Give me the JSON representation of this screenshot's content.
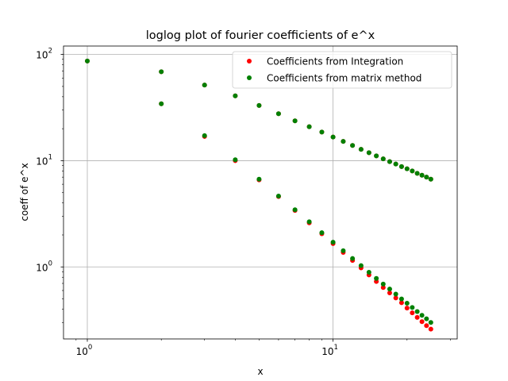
{
  "chart_data": {
    "type": "scatter",
    "title": "loglog plot of fourier coefficients of e^x",
    "xlabel": "x",
    "ylabel": "coeff of e^x",
    "xscale": "log",
    "yscale": "log",
    "xlim": [
      0.8,
      32
    ],
    "ylim": [
      0.21,
      120
    ],
    "grid": true,
    "legend_position": "top-right",
    "x_ticks": [
      {
        "value": 1,
        "base": "10",
        "exp": "0"
      },
      {
        "value": 10,
        "base": "10",
        "exp": "1"
      }
    ],
    "y_ticks": [
      {
        "value": 1,
        "base": "10",
        "exp": "0"
      },
      {
        "value": 10,
        "base": "10",
        "exp": "1"
      },
      {
        "value": 100,
        "base": "10",
        "exp": "2"
      }
    ],
    "series": [
      {
        "name": "Coefficients from Integration",
        "color": "#ff0000",
        "points": [
          [
            1,
            86.7
          ],
          [
            2,
            68.7
          ],
          [
            2,
            34.3
          ],
          [
            3,
            51.5
          ],
          [
            3,
            16.9
          ],
          [
            4,
            40.8
          ],
          [
            4,
            10.0
          ],
          [
            5,
            33.1
          ],
          [
            5,
            6.6
          ],
          [
            6,
            27.7
          ],
          [
            6,
            4.6
          ],
          [
            7,
            23.7
          ],
          [
            7,
            3.4
          ],
          [
            8,
            20.9
          ],
          [
            8,
            2.6
          ],
          [
            9,
            18.6
          ],
          [
            9,
            2.05
          ],
          [
            10,
            16.7
          ],
          [
            10,
            1.66
          ],
          [
            11,
            15.2
          ],
          [
            11,
            1.37
          ],
          [
            12,
            13.9
          ],
          [
            12,
            1.15
          ],
          [
            13,
            12.8
          ],
          [
            13,
            0.98
          ],
          [
            14,
            11.9
          ],
          [
            14,
            0.84
          ],
          [
            15,
            11.1
          ],
          [
            15,
            0.73
          ],
          [
            16,
            10.4
          ],
          [
            16,
            0.64
          ],
          [
            17,
            9.8
          ],
          [
            17,
            0.57
          ],
          [
            18,
            9.3
          ],
          [
            18,
            0.51
          ],
          [
            19,
            8.8
          ],
          [
            19,
            0.46
          ],
          [
            20,
            8.4
          ],
          [
            20,
            0.41
          ],
          [
            21,
            8.0
          ],
          [
            21,
            0.37
          ],
          [
            22,
            7.6
          ],
          [
            22,
            0.335
          ],
          [
            23,
            7.3
          ],
          [
            23,
            0.305
          ],
          [
            24,
            7.0
          ],
          [
            24,
            0.28
          ],
          [
            25,
            6.7
          ],
          [
            25,
            0.26
          ]
        ]
      },
      {
        "name": "Coefficients from matrix method",
        "color": "#008000",
        "points": [
          [
            1,
            86.7
          ],
          [
            2,
            68.7
          ],
          [
            2,
            34.3
          ],
          [
            3,
            51.5
          ],
          [
            3,
            17.2
          ],
          [
            4,
            40.8
          ],
          [
            4,
            10.2
          ],
          [
            5,
            33.1
          ],
          [
            5,
            6.7
          ],
          [
            6,
            27.7
          ],
          [
            6,
            4.65
          ],
          [
            7,
            23.7
          ],
          [
            7,
            3.45
          ],
          [
            8,
            20.9
          ],
          [
            8,
            2.66
          ],
          [
            9,
            18.6
          ],
          [
            9,
            2.1
          ],
          [
            10,
            16.7
          ],
          [
            10,
            1.71
          ],
          [
            11,
            15.2
          ],
          [
            11,
            1.42
          ],
          [
            12,
            13.9
          ],
          [
            12,
            1.2
          ],
          [
            13,
            12.8
          ],
          [
            13,
            1.03
          ],
          [
            14,
            11.9
          ],
          [
            14,
            0.89
          ],
          [
            15,
            11.1
          ],
          [
            15,
            0.78
          ],
          [
            16,
            10.4
          ],
          [
            16,
            0.69
          ],
          [
            17,
            9.8
          ],
          [
            17,
            0.62
          ],
          [
            18,
            9.3
          ],
          [
            18,
            0.555
          ],
          [
            19,
            8.8
          ],
          [
            19,
            0.5
          ],
          [
            20,
            8.4
          ],
          [
            20,
            0.455
          ],
          [
            21,
            8.0
          ],
          [
            21,
            0.415
          ],
          [
            22,
            7.6
          ],
          [
            22,
            0.38
          ],
          [
            23,
            7.3
          ],
          [
            23,
            0.35
          ],
          [
            24,
            7.0
          ],
          [
            24,
            0.325
          ],
          [
            25,
            6.7
          ],
          [
            25,
            0.3
          ]
        ]
      }
    ]
  }
}
